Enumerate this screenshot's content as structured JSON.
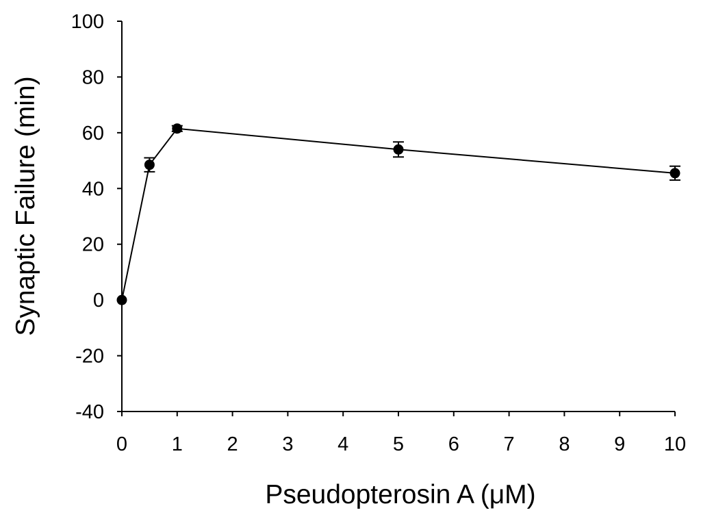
{
  "chart_data": {
    "type": "line",
    "title": "",
    "xlabel": "Pseudopterosin A (μM)",
    "ylabel": "Synaptic Failure (min)",
    "xlim": [
      0,
      10
    ],
    "ylim": [
      -40,
      100
    ],
    "x_ticks": [
      0,
      1,
      2,
      3,
      4,
      5,
      6,
      7,
      8,
      9,
      10
    ],
    "y_ticks": [
      -40,
      -20,
      0,
      20,
      40,
      60,
      80,
      100
    ],
    "grid": false,
    "legend": "none",
    "series": [
      {
        "x": [
          0,
          0.5,
          1,
          5,
          10
        ],
        "y": [
          0,
          48.5,
          61.5,
          54,
          45.5
        ],
        "error": [
          0,
          2.5,
          1,
          2.7,
          2.5
        ],
        "color": "#000000",
        "marker": "circle"
      }
    ]
  }
}
